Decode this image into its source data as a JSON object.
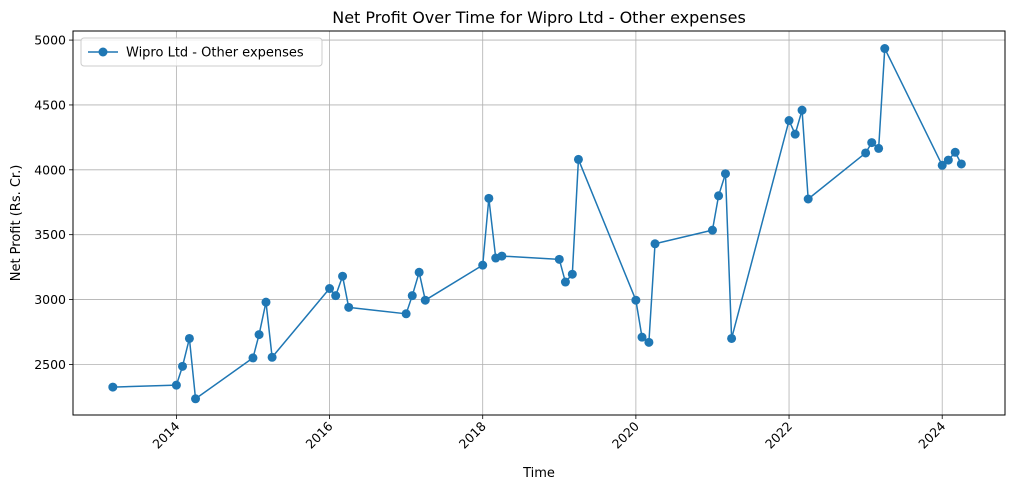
{
  "chart_data": {
    "type": "line",
    "title": "Net Profit Over Time for Wipro Ltd - Other expenses",
    "xlabel": "Time",
    "ylabel": "Net Profit (Rs. Cr.)",
    "xlim": [
      2012.65,
      2024.82
    ],
    "ylim": [
      2110,
      5070
    ],
    "x_ticks": [
      2014,
      2016,
      2018,
      2020,
      2022,
      2024
    ],
    "y_ticks": [
      2500,
      3000,
      3500,
      4000,
      4500,
      5000
    ],
    "grid": true,
    "legend_position": "top-left",
    "series": [
      {
        "name": "Wipro Ltd - Other expenses",
        "color": "#1f77b4",
        "marker": "circle",
        "points": [
          [
            2013.17,
            2325
          ],
          [
            2014.0,
            2340
          ],
          [
            2014.08,
            2485
          ],
          [
            2014.17,
            2700
          ],
          [
            2014.25,
            2235
          ],
          [
            2015.0,
            2550
          ],
          [
            2015.08,
            2730
          ],
          [
            2015.17,
            2980
          ],
          [
            2015.25,
            2555
          ],
          [
            2016.0,
            3085
          ],
          [
            2016.08,
            3030
          ],
          [
            2016.17,
            3180
          ],
          [
            2016.25,
            2940
          ],
          [
            2017.0,
            2890
          ],
          [
            2017.08,
            3030
          ],
          [
            2017.17,
            3210
          ],
          [
            2017.25,
            2995
          ],
          [
            2018.0,
            3265
          ],
          [
            2018.08,
            3780
          ],
          [
            2018.17,
            3320
          ],
          [
            2018.25,
            3335
          ],
          [
            2019.0,
            3310
          ],
          [
            2019.08,
            3135
          ],
          [
            2019.17,
            3195
          ],
          [
            2019.25,
            4080
          ],
          [
            2020.0,
            2995
          ],
          [
            2020.08,
            2710
          ],
          [
            2020.17,
            2670
          ],
          [
            2020.25,
            3430
          ],
          [
            2021.0,
            3535
          ],
          [
            2021.08,
            3800
          ],
          [
            2021.17,
            3970
          ],
          [
            2021.25,
            2700
          ],
          [
            2022.0,
            4380
          ],
          [
            2022.08,
            4275
          ],
          [
            2022.17,
            4460
          ],
          [
            2022.25,
            3775
          ],
          [
            2023.0,
            4130
          ],
          [
            2023.08,
            4210
          ],
          [
            2023.17,
            4165
          ],
          [
            2023.25,
            4935
          ],
          [
            2024.0,
            4035
          ],
          [
            2024.08,
            4075
          ],
          [
            2024.17,
            4135
          ],
          [
            2024.25,
            4045
          ]
        ]
      }
    ]
  }
}
